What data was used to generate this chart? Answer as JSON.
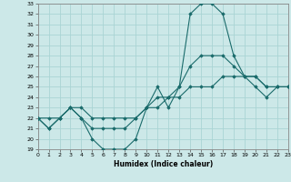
{
  "xlabel": "Humidex (Indice chaleur)",
  "bg_color": "#cce8e8",
  "grid_color": "#aad4d4",
  "line_color": "#1a6b6b",
  "x": [
    0,
    1,
    2,
    3,
    4,
    5,
    6,
    7,
    8,
    9,
    10,
    11,
    12,
    13,
    14,
    15,
    16,
    17,
    18,
    19,
    20,
    21,
    22,
    23
  ],
  "line1": [
    22,
    21,
    22,
    23,
    22,
    20,
    19,
    19,
    19,
    20,
    23,
    25,
    23,
    25,
    32,
    33,
    33,
    32,
    28,
    26,
    25,
    24,
    25,
    25
  ],
  "line2": [
    22,
    21,
    22,
    23,
    22,
    21,
    21,
    21,
    21,
    22,
    23,
    24,
    24,
    25,
    27,
    28,
    28,
    28,
    27,
    26,
    26,
    25,
    25,
    25
  ],
  "line3": [
    22,
    22,
    22,
    23,
    23,
    22,
    22,
    22,
    22,
    22,
    23,
    23,
    24,
    24,
    25,
    25,
    25,
    26,
    26,
    26,
    26,
    25,
    25,
    25
  ],
  "ylim": [
    19,
    33
  ],
  "xlim": [
    0,
    23
  ],
  "yticks": [
    19,
    20,
    21,
    22,
    23,
    24,
    25,
    26,
    27,
    28,
    29,
    30,
    31,
    32,
    33
  ],
  "xticks": [
    0,
    1,
    2,
    3,
    4,
    5,
    6,
    7,
    8,
    9,
    10,
    11,
    12,
    13,
    14,
    15,
    16,
    17,
    18,
    19,
    20,
    21,
    22,
    23
  ]
}
